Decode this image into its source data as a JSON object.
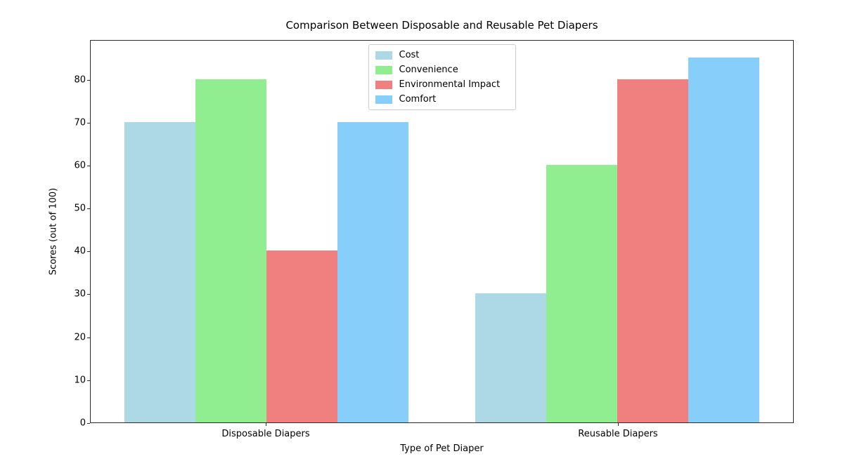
{
  "figure": {
    "background": "#ffffff",
    "text_color": "#000000",
    "spine_color": "#2b2b2b"
  },
  "chart_data": {
    "type": "bar",
    "title": "Comparison Between Disposable and Reusable Pet Diapers",
    "xlabel": "Type of Pet Diaper",
    "ylabel": "Scores (out of 100)",
    "categories": [
      "Disposable Diapers",
      "Reusable Diapers"
    ],
    "series": [
      {
        "name": "Cost",
        "color": "#ADD8E6",
        "values": [
          70,
          30
        ]
      },
      {
        "name": "Convenience",
        "color": "#90EE90",
        "values": [
          80,
          60
        ]
      },
      {
        "name": "Environmental Impact",
        "color": "#F08080",
        "values": [
          40,
          80
        ]
      },
      {
        "name": "Comfort",
        "color": "#87CEFA",
        "values": [
          70,
          85
        ]
      }
    ],
    "yticks": [
      0,
      10,
      20,
      30,
      40,
      50,
      60,
      70,
      80
    ],
    "ylim": [
      0,
      89.25
    ],
    "legend_position": "upper center",
    "grid": false,
    "group_centers_pct": [
      25,
      75
    ]
  }
}
